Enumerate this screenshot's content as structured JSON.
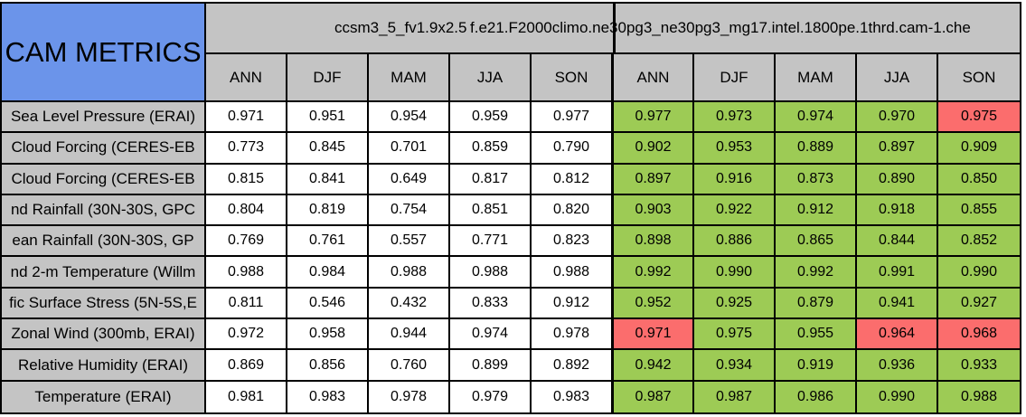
{
  "table": {
    "title": "CAM METRICS",
    "group_headers": {
      "model1": "ccsm3_5_fv1.9x2.5",
      "model2": "f.e21.F2000climo.ne30pg3_ne30pg3_mg17.intel.1800pe.1thrd.cam-1.che"
    },
    "season_columns": [
      "ANN",
      "DJF",
      "MAM",
      "JJA",
      "SON"
    ],
    "colors": {
      "title_bg": "#6B94EA",
      "header_bg": "#C4C4C4",
      "cell_bg": "#FFFFFF",
      "good": "#9DCB55",
      "bad": "#FB6D6D",
      "border": "#000000"
    },
    "rows": [
      {
        "label": "Sea Level Pressure (ERAI)",
        "model1_values": [
          "0.971",
          "0.951",
          "0.954",
          "0.959",
          "0.977"
        ],
        "model2_values": [
          "0.977",
          "0.973",
          "0.974",
          "0.970",
          "0.975"
        ],
        "model2_status": [
          "good",
          "good",
          "good",
          "good",
          "bad"
        ]
      },
      {
        "label": "Cloud Forcing (CERES-EB",
        "model1_values": [
          "0.773",
          "0.845",
          "0.701",
          "0.859",
          "0.790"
        ],
        "model2_values": [
          "0.902",
          "0.953",
          "0.889",
          "0.897",
          "0.909"
        ],
        "model2_status": [
          "good",
          "good",
          "good",
          "good",
          "good"
        ]
      },
      {
        "label": "Cloud Forcing (CERES-EB",
        "model1_values": [
          "0.815",
          "0.841",
          "0.649",
          "0.817",
          "0.812"
        ],
        "model2_values": [
          "0.897",
          "0.916",
          "0.873",
          "0.890",
          "0.850"
        ],
        "model2_status": [
          "good",
          "good",
          "good",
          "good",
          "good"
        ]
      },
      {
        "label": "nd Rainfall (30N-30S, GPC",
        "model1_values": [
          "0.804",
          "0.819",
          "0.754",
          "0.851",
          "0.820"
        ],
        "model2_values": [
          "0.903",
          "0.922",
          "0.912",
          "0.918",
          "0.855"
        ],
        "model2_status": [
          "good",
          "good",
          "good",
          "good",
          "good"
        ]
      },
      {
        "label": "ean Rainfall (30N-30S, GP",
        "model1_values": [
          "0.769",
          "0.761",
          "0.557",
          "0.771",
          "0.823"
        ],
        "model2_values": [
          "0.898",
          "0.886",
          "0.865",
          "0.844",
          "0.852"
        ],
        "model2_status": [
          "good",
          "good",
          "good",
          "good",
          "good"
        ]
      },
      {
        "label": "nd 2-m Temperature (Willm",
        "model1_values": [
          "0.988",
          "0.984",
          "0.988",
          "0.988",
          "0.988"
        ],
        "model2_values": [
          "0.992",
          "0.990",
          "0.992",
          "0.991",
          "0.990"
        ],
        "model2_status": [
          "good",
          "good",
          "good",
          "good",
          "good"
        ]
      },
      {
        "label": "fic Surface Stress (5N-5S,E",
        "model1_values": [
          "0.811",
          "0.546",
          "0.432",
          "0.833",
          "0.912"
        ],
        "model2_values": [
          "0.952",
          "0.925",
          "0.879",
          "0.941",
          "0.927"
        ],
        "model2_status": [
          "good",
          "good",
          "good",
          "good",
          "good"
        ]
      },
      {
        "label": "Zonal Wind (300mb, ERAI)",
        "model1_values": [
          "0.972",
          "0.958",
          "0.944",
          "0.974",
          "0.978"
        ],
        "model2_values": [
          "0.971",
          "0.975",
          "0.955",
          "0.964",
          "0.968"
        ],
        "model2_status": [
          "bad",
          "good",
          "good",
          "bad",
          "bad"
        ]
      },
      {
        "label": "Relative Humidity (ERAI)",
        "model1_values": [
          "0.869",
          "0.856",
          "0.760",
          "0.899",
          "0.892"
        ],
        "model2_values": [
          "0.942",
          "0.934",
          "0.919",
          "0.936",
          "0.933"
        ],
        "model2_status": [
          "good",
          "good",
          "good",
          "good",
          "good"
        ]
      },
      {
        "label": "Temperature (ERAI)",
        "model1_values": [
          "0.981",
          "0.983",
          "0.978",
          "0.979",
          "0.983"
        ],
        "model2_values": [
          "0.987",
          "0.987",
          "0.986",
          "0.990",
          "0.988"
        ],
        "model2_status": [
          "good",
          "good",
          "good",
          "good",
          "good"
        ]
      }
    ]
  }
}
